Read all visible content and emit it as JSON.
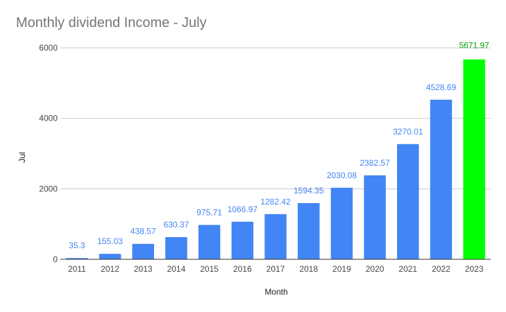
{
  "chart_data": {
    "type": "bar",
    "title": "Monthly dividend Income - July",
    "xlabel": "Month",
    "ylabel": "Jul",
    "categories": [
      "2011",
      "2012",
      "2013",
      "2014",
      "2015",
      "2016",
      "2017",
      "2018",
      "2019",
      "2020",
      "2021",
      "2022",
      "2023"
    ],
    "values": [
      35.3,
      155.03,
      438.57,
      630.37,
      975.71,
      1066.97,
      1282.42,
      1594.35,
      2030.08,
      2382.57,
      3270.01,
      4528.69,
      5671.97
    ],
    "data_labels": [
      "35.3",
      "155.03",
      "438.57",
      "630.37",
      "975.71",
      "1066.97",
      "1282.42",
      "1594.35",
      "2030.08",
      "2382.57",
      "3270.01",
      "4528.69",
      "5671.97"
    ],
    "ylim": [
      0,
      6000
    ],
    "yticks": [
      0,
      2000,
      4000,
      6000
    ],
    "ytick_labels": [
      "0",
      "2000",
      "4000",
      "6000"
    ],
    "grid": true,
    "legend": "none",
    "colors": {
      "bar": "#4285f4",
      "highlight_bar": "#00ff00",
      "highlight_index": 12,
      "label": "#4285f4",
      "highlight_label": "#0b9d0b",
      "gridline": "#cccccc",
      "baseline": "#333333"
    }
  }
}
